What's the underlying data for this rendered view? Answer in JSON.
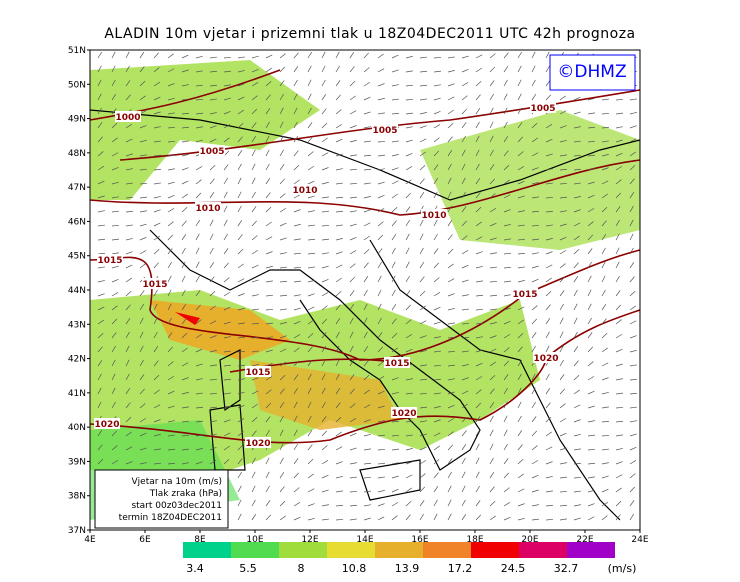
{
  "header": {
    "title": "ALADIN 10m vjetar i prizemni tlak u 18Z04DEC2011 UTC 42h prognoza",
    "logo": "©DHMZ"
  },
  "axes": {
    "lat_labels": [
      "51N",
      "50N",
      "49N",
      "48N",
      "47N",
      "46N",
      "45N",
      "44N",
      "43N",
      "42N",
      "41N",
      "40N",
      "39N",
      "38N",
      "37N"
    ],
    "lon_labels": [
      "4E",
      "6E",
      "8E",
      "10E",
      "12E",
      "14E",
      "16E",
      "18E",
      "20E",
      "22E",
      "24E"
    ]
  },
  "isobar_labels": [
    "1000",
    "1005",
    "1005",
    "1005",
    "1010",
    "1010",
    "1010",
    "1015",
    "1015",
    "1015",
    "1015",
    "1015",
    "1020",
    "1020",
    "1020",
    "1020"
  ],
  "info_box": [
    "Vjetar na 10m (m/s)",
    "Tlak zraka (hPa)",
    "start 00z03dec2011",
    "termin 18Z04DEC2011"
  ],
  "colorbar": {
    "colors": [
      "#00d28c",
      "#50dc50",
      "#a0dc3c",
      "#e6dc32",
      "#e6b02d",
      "#f08228",
      "#f00000",
      "#dc0064",
      "#a000c8"
    ],
    "labels": [
      "3.4",
      "5.5",
      "8",
      "10.8",
      "13.9",
      "17.2",
      "24.5",
      "32.7"
    ],
    "unit": "(m/s)"
  }
}
